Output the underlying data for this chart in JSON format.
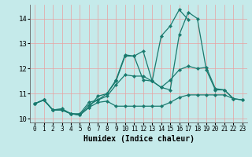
{
  "title": "",
  "xlabel": "Humidex (Indice chaleur)",
  "bg_color": "#c5eaea",
  "grid_color": "#e8a0a0",
  "line_color": "#1a7a6e",
  "marker": "D",
  "markersize": 2.2,
  "linewidth": 0.9,
  "xlim": [
    -0.5,
    23.5
  ],
  "ylim": [
    9.85,
    14.55
  ],
  "xticks": [
    0,
    1,
    2,
    3,
    4,
    5,
    6,
    7,
    8,
    9,
    10,
    11,
    12,
    13,
    14,
    15,
    16,
    17,
    18,
    19,
    20,
    21,
    22,
    23
  ],
  "yticks": [
    10,
    11,
    12,
    13,
    14
  ],
  "series": [
    [
      10.6,
      10.75,
      10.35,
      10.35,
      10.2,
      10.15,
      10.45,
      10.65,
      10.7,
      10.5,
      10.5,
      10.5,
      10.5,
      10.5,
      10.5,
      10.65,
      10.85,
      10.95,
      10.95,
      10.95,
      10.95,
      10.95,
      10.8,
      10.75
    ],
    [
      10.6,
      10.75,
      10.35,
      10.35,
      10.2,
      10.15,
      10.55,
      10.75,
      10.9,
      11.35,
      11.75,
      11.7,
      11.7,
      11.5,
      11.25,
      11.55,
      11.95,
      12.1,
      12.0,
      12.05,
      11.2,
      11.15,
      10.8,
      10.75
    ],
    [
      10.6,
      10.75,
      10.35,
      10.4,
      10.2,
      10.2,
      10.65,
      10.75,
      11.0,
      11.5,
      12.5,
      12.5,
      12.7,
      11.5,
      11.25,
      11.15,
      13.35,
      14.25,
      14.0,
      11.95,
      11.15,
      11.15,
      10.8,
      null
    ],
    [
      10.6,
      10.75,
      10.35,
      10.35,
      10.2,
      10.15,
      10.45,
      10.9,
      11.0,
      11.55,
      12.55,
      12.5,
      11.55,
      11.5,
      13.3,
      13.7,
      14.35,
      13.95,
      null,
      null,
      null,
      null,
      null,
      null
    ]
  ]
}
